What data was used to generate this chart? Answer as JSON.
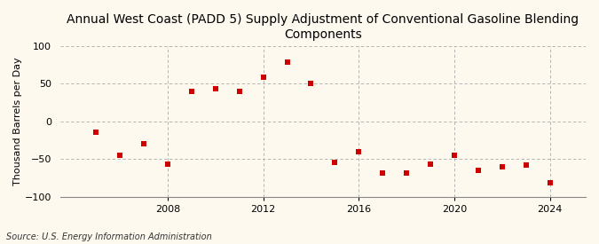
{
  "title": "Annual West Coast (PADD 5) Supply Adjustment of Conventional Gasoline Blending\nComponents",
  "ylabel": "Thousand Barrels per Day",
  "source": "Source: U.S. Energy Information Administration",
  "years": [
    2005,
    2006,
    2007,
    2008,
    2009,
    2010,
    2011,
    2012,
    2013,
    2014,
    2015,
    2016,
    2017,
    2018,
    2019,
    2020,
    2021,
    2022,
    2023,
    2024
  ],
  "values": [
    -15,
    -45,
    -30,
    -57,
    40,
    43,
    40,
    58,
    78,
    50,
    -55,
    -40,
    -68,
    -68,
    -57,
    -45,
    -65,
    -60,
    -58,
    -82
  ],
  "marker_color": "#CC0000",
  "bg_color": "#FEF9EE",
  "plot_bg_color": "#FEF9EE",
  "grid_color": "#AAAAAA",
  "ylim": [
    -100,
    100
  ],
  "yticks": [
    -100,
    -50,
    0,
    50,
    100
  ],
  "xticks": [
    2008,
    2012,
    2016,
    2020,
    2024
  ],
  "xlim": [
    2003.5,
    2025.5
  ],
  "title_fontsize": 10,
  "label_fontsize": 8,
  "source_fontsize": 7,
  "marker_size": 14
}
